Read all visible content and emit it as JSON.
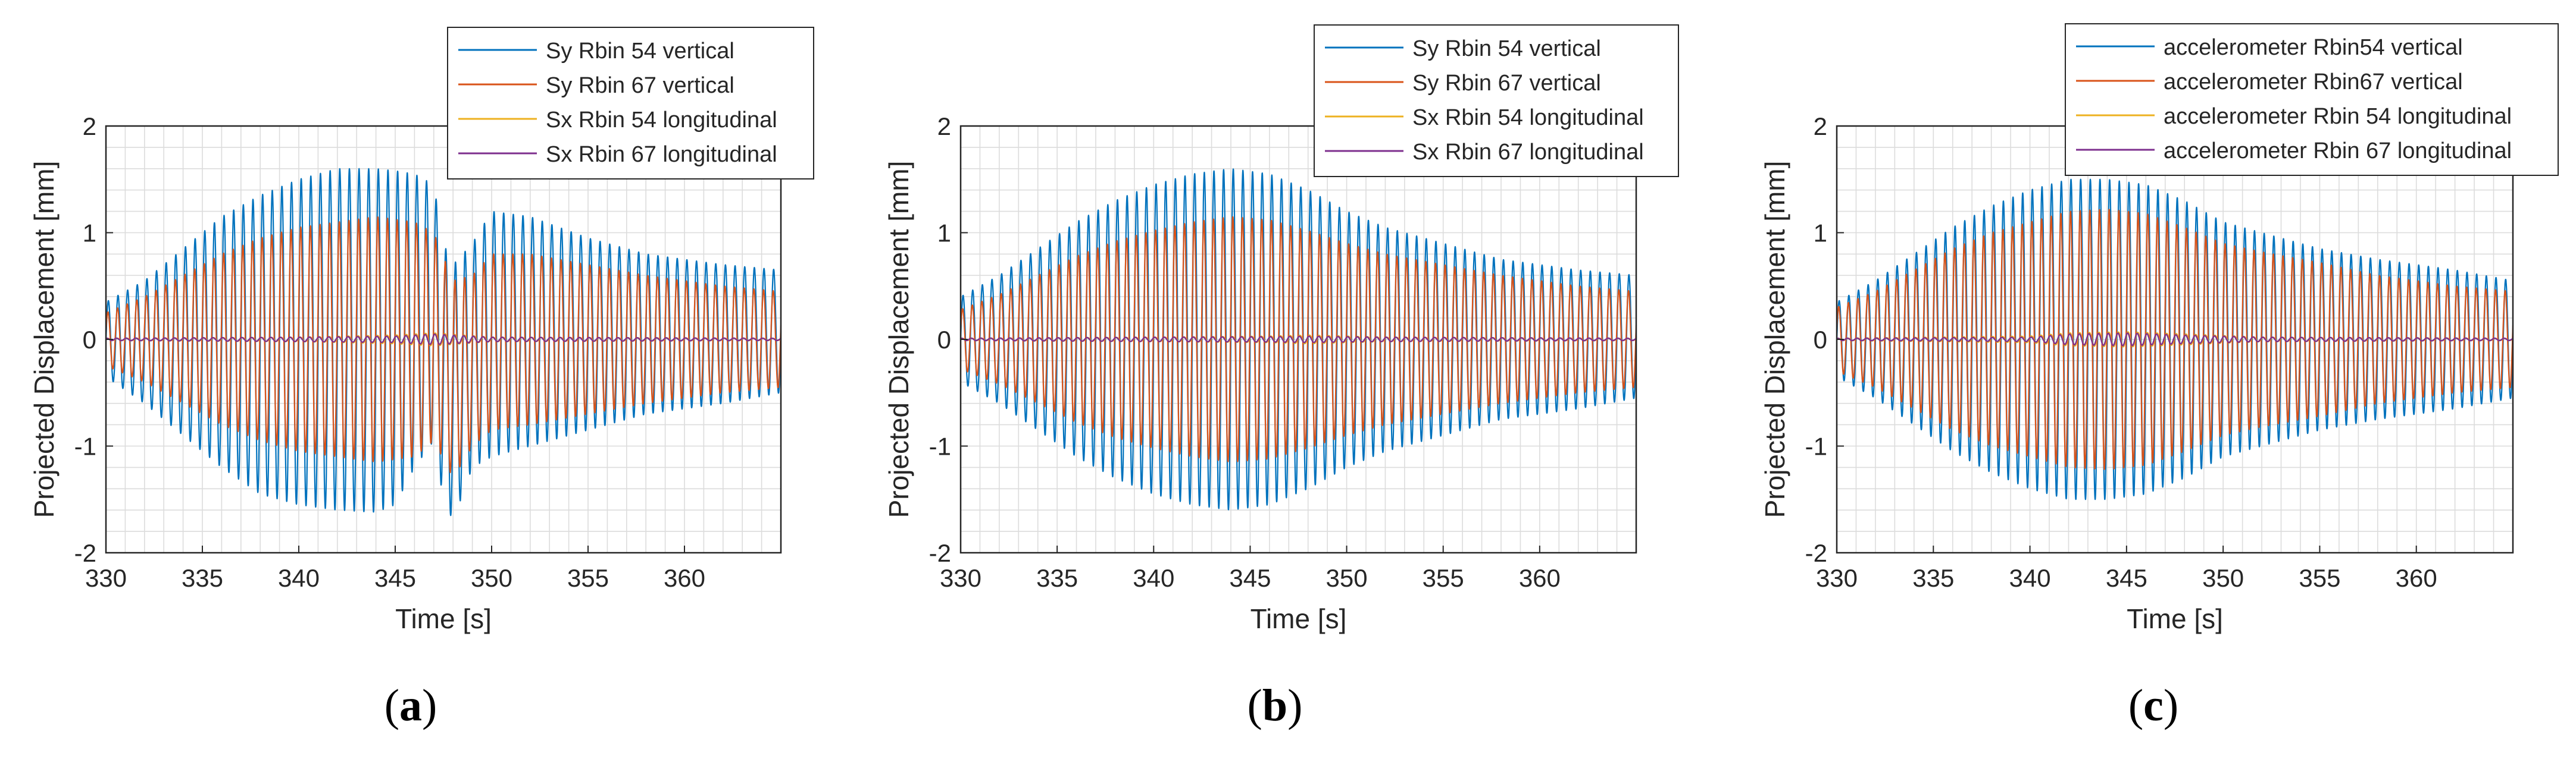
{
  "figure": {
    "panels": [
      {
        "caption_letter": "a",
        "chart_data": {
          "type": "line",
          "title": "",
          "xlabel": "Time [s]",
          "ylabel": "Projected Displacement [mm]",
          "xlim": [
            330,
            365
          ],
          "ylim": [
            -2,
            2
          ],
          "xticks": [
            330,
            335,
            340,
            345,
            350,
            355,
            360
          ],
          "yticks": [
            -2,
            -1,
            0,
            1,
            2
          ],
          "grid": true,
          "legend_position": "top-right",
          "oscillation_frequency_hz": 2.0,
          "series": [
            {
              "name": "Sy Rbin 54 vertical",
              "color": "#0072BD",
              "kind": "oscillation",
              "envelope_t": [
                330,
                332,
                334,
                336,
                338,
                340,
                342,
                344,
                345,
                346,
                347,
                347.5,
                348,
                349,
                350,
                352,
                355,
                358,
                360,
                362,
                365
              ],
              "envelope_upper": [
                0.35,
                0.55,
                0.85,
                1.15,
                1.35,
                1.5,
                1.6,
                1.6,
                1.58,
                1.55,
                1.45,
                0.9,
                0.7,
                0.9,
                1.2,
                1.15,
                0.95,
                0.8,
                0.75,
                0.7,
                0.65
              ],
              "envelope_lower": [
                -0.35,
                -0.6,
                -0.9,
                -1.2,
                -1.45,
                -1.55,
                -1.6,
                -1.62,
                -1.55,
                -1.2,
                -0.95,
                -1.5,
                -1.7,
                -1.2,
                -1.1,
                -1.0,
                -0.85,
                -0.7,
                -0.65,
                -0.6,
                -0.5
              ]
            },
            {
              "name": "Sy Rbin 67 vertical",
              "color": "#D95319",
              "kind": "oscillation",
              "envelope_t": [
                330,
                332,
                334,
                336,
                338,
                340,
                342,
                344,
                346,
                347,
                348,
                349,
                350,
                352,
                355,
                358,
                360,
                362,
                365
              ],
              "envelope_upper": [
                0.25,
                0.4,
                0.6,
                0.8,
                0.95,
                1.05,
                1.1,
                1.15,
                1.1,
                1.0,
                0.55,
                0.6,
                0.8,
                0.8,
                0.7,
                0.6,
                0.55,
                0.5,
                0.45
              ],
              "envelope_lower": [
                -0.25,
                -0.4,
                -0.6,
                -0.8,
                -0.95,
                -1.05,
                -1.1,
                -1.15,
                -1.1,
                -0.95,
                -1.3,
                -1.0,
                -0.85,
                -0.8,
                -0.7,
                -0.6,
                -0.55,
                -0.5,
                -0.45
              ]
            },
            {
              "name": "Sx Rbin 54 longitudinal",
              "color": "#EDB120",
              "kind": "oscillation",
              "envelope_t": [
                330,
                340,
                345,
                347,
                350,
                365
              ],
              "envelope_upper": [
                0.01,
                0.02,
                0.04,
                0.06,
                0.02,
                0.01
              ],
              "envelope_lower": [
                -0.01,
                -0.02,
                -0.04,
                -0.06,
                -0.02,
                -0.01
              ]
            },
            {
              "name": "Sx Rbin 67 longitudinal",
              "color": "#7E2F8E",
              "kind": "oscillation",
              "envelope_t": [
                330,
                340,
                345,
                347,
                350,
                365
              ],
              "envelope_upper": [
                0.01,
                0.02,
                0.03,
                0.05,
                0.02,
                0.01
              ],
              "envelope_lower": [
                -0.01,
                -0.02,
                -0.03,
                -0.05,
                -0.02,
                -0.01
              ]
            }
          ]
        }
      },
      {
        "caption_letter": "b",
        "chart_data": {
          "type": "line",
          "title": "",
          "xlabel": "Time [s]",
          "ylabel": "Projected Displacement [mm]",
          "xlim": [
            330,
            365
          ],
          "ylim": [
            -2,
            2
          ],
          "xticks": [
            330,
            335,
            340,
            345,
            350,
            355,
            360
          ],
          "yticks": [
            -2,
            -1,
            0,
            1,
            2
          ],
          "grid": true,
          "legend_position": "top-right",
          "oscillation_frequency_hz": 2.0,
          "series": [
            {
              "name": "Sy Rbin 54 vertical",
              "color": "#0072BD",
              "kind": "oscillation",
              "envelope_t": [
                330,
                332,
                334,
                336,
                338,
                340,
                342,
                344,
                346,
                348,
                350,
                352,
                355,
                358,
                360,
                362,
                365
              ],
              "envelope_upper": [
                0.4,
                0.6,
                0.85,
                1.1,
                1.3,
                1.45,
                1.55,
                1.6,
                1.55,
                1.4,
                1.2,
                1.05,
                0.9,
                0.75,
                0.7,
                0.65,
                0.6
              ],
              "envelope_lower": [
                -0.4,
                -0.6,
                -0.85,
                -1.1,
                -1.3,
                -1.45,
                -1.55,
                -1.6,
                -1.55,
                -1.4,
                -1.2,
                -1.05,
                -0.9,
                -0.75,
                -0.7,
                -0.65,
                -0.55
              ]
            },
            {
              "name": "Sy Rbin 67 vertical",
              "color": "#D95319",
              "kind": "oscillation",
              "envelope_t": [
                330,
                332,
                334,
                336,
                338,
                340,
                342,
                344,
                346,
                348,
                350,
                352,
                355,
                358,
                360,
                362,
                365
              ],
              "envelope_upper": [
                0.28,
                0.42,
                0.6,
                0.78,
                0.92,
                1.02,
                1.1,
                1.15,
                1.12,
                1.02,
                0.9,
                0.8,
                0.7,
                0.6,
                0.55,
                0.5,
                0.45
              ],
              "envelope_lower": [
                -0.28,
                -0.42,
                -0.6,
                -0.78,
                -0.92,
                -1.02,
                -1.1,
                -1.15,
                -1.12,
                -1.02,
                -0.9,
                -0.8,
                -0.7,
                -0.6,
                -0.55,
                -0.5,
                -0.45
              ]
            },
            {
              "name": "Sx Rbin 54 longitudinal",
              "color": "#EDB120",
              "kind": "oscillation",
              "envelope_t": [
                330,
                340,
                346,
                348,
                352,
                365
              ],
              "envelope_upper": [
                0.01,
                0.02,
                0.03,
                0.04,
                0.02,
                0.01
              ],
              "envelope_lower": [
                -0.01,
                -0.02,
                -0.03,
                -0.04,
                -0.02,
                -0.01
              ]
            },
            {
              "name": "Sx Rbin 67 longitudinal",
              "color": "#7E2F8E",
              "kind": "oscillation",
              "envelope_t": [
                330,
                340,
                346,
                348,
                352,
                365
              ],
              "envelope_upper": [
                0.01,
                0.02,
                0.025,
                0.03,
                0.02,
                0.01
              ],
              "envelope_lower": [
                -0.01,
                -0.02,
                -0.025,
                -0.03,
                -0.02,
                -0.01
              ]
            }
          ]
        }
      },
      {
        "caption_letter": "c",
        "chart_data": {
          "type": "line",
          "title": "",
          "xlabel": "Time [s]",
          "ylabel": "Projected Displacement [mm]",
          "xlim": [
            330,
            365
          ],
          "ylim": [
            -2,
            2
          ],
          "xticks": [
            330,
            335,
            340,
            345,
            350,
            355,
            360
          ],
          "yticks": [
            -2,
            -1,
            0,
            1,
            2
          ],
          "grid": true,
          "legend_position": "top-right",
          "oscillation_frequency_hz": 2.0,
          "series": [
            {
              "name": "accelerometer Rbin54 vertical",
              "color": "#0072BD",
              "kind": "oscillation",
              "envelope_t": [
                330,
                332,
                334,
                336,
                338,
                340,
                342,
                344,
                346,
                348,
                350,
                352,
                355,
                358,
                360,
                362,
                365
              ],
              "envelope_upper": [
                0.35,
                0.55,
                0.8,
                1.05,
                1.25,
                1.4,
                1.5,
                1.5,
                1.45,
                1.3,
                1.1,
                1.0,
                0.85,
                0.75,
                0.7,
                0.65,
                0.55
              ],
              "envelope_lower": [
                -0.35,
                -0.55,
                -0.8,
                -1.05,
                -1.25,
                -1.4,
                -1.5,
                -1.5,
                -1.45,
                -1.3,
                -1.1,
                -1.0,
                -0.85,
                -0.75,
                -0.7,
                -0.65,
                -0.55
              ]
            },
            {
              "name": "accelerometer Rbin67 vertical",
              "color": "#D95319",
              "kind": "oscillation",
              "envelope_t": [
                330,
                332,
                334,
                336,
                338,
                340,
                342,
                344,
                346,
                348,
                350,
                352,
                355,
                358,
                360,
                362,
                365
              ],
              "envelope_upper": [
                0.3,
                0.45,
                0.65,
                0.85,
                1.0,
                1.1,
                1.2,
                1.22,
                1.18,
                1.05,
                0.9,
                0.82,
                0.72,
                0.6,
                0.55,
                0.5,
                0.45
              ],
              "envelope_lower": [
                -0.3,
                -0.45,
                -0.65,
                -0.85,
                -1.0,
                -1.1,
                -1.2,
                -1.22,
                -1.18,
                -1.05,
                -0.9,
                -0.82,
                -0.72,
                -0.6,
                -0.55,
                -0.5,
                -0.45
              ]
            },
            {
              "name": "accelerometer Rbin 54 longitudinal",
              "color": "#EDB120",
              "kind": "oscillation",
              "envelope_t": [
                330,
                340,
                342,
                345,
                348,
                352,
                365
              ],
              "envelope_upper": [
                0.01,
                0.03,
                0.06,
                0.07,
                0.05,
                0.02,
                0.01
              ],
              "envelope_lower": [
                -0.01,
                -0.03,
                -0.06,
                -0.07,
                -0.05,
                -0.02,
                -0.01
              ]
            },
            {
              "name": "accelerometer Rbin 67 longitudinal",
              "color": "#7E2F8E",
              "kind": "oscillation",
              "envelope_t": [
                330,
                340,
                342,
                345,
                348,
                352,
                365
              ],
              "envelope_upper": [
                0.01,
                0.02,
                0.05,
                0.06,
                0.04,
                0.02,
                0.01
              ],
              "envelope_lower": [
                -0.01,
                -0.02,
                -0.05,
                -0.06,
                -0.04,
                -0.02,
                -0.01
              ]
            }
          ]
        }
      }
    ]
  },
  "style": {
    "axis_color": "#262626",
    "grid_color": "#dcdcdc",
    "background": "#ffffff"
  }
}
